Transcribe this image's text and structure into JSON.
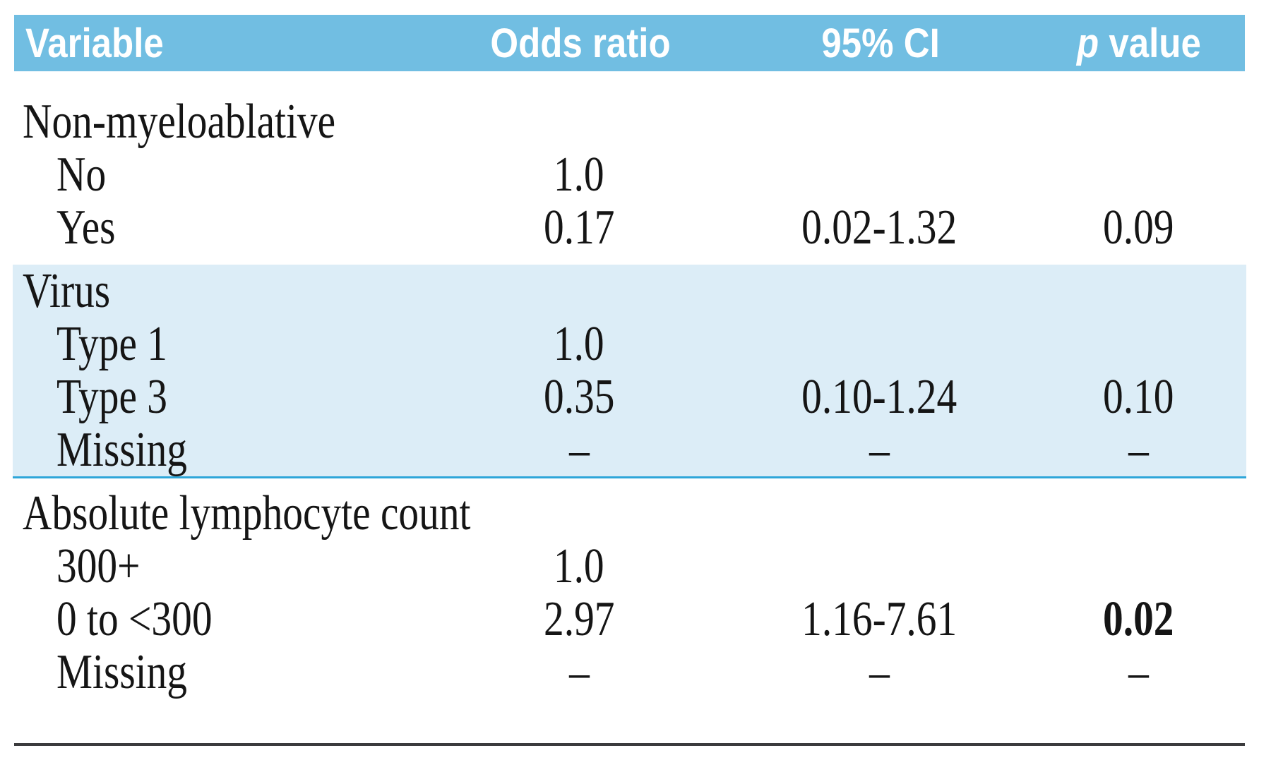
{
  "colors": {
    "header_bg": "#71BEE2",
    "header_text": "#FFFFFF",
    "shaded_row_bg": "#DCEDF7",
    "shaded_divider": "#2EA6D9",
    "bottom_rule": "#3B3B3D",
    "body_text": "#151515"
  },
  "header": {
    "variable": "Variable",
    "odds_ratio": "Odds ratio",
    "ci": "95% CI",
    "p_italic": "p",
    "p_rest": " value"
  },
  "chart_data": {
    "type": "table",
    "columns": [
      "Variable",
      "Odds ratio",
      "95% CI",
      "p value"
    ],
    "rows": [
      [
        "Non-myeloablative",
        "",
        "",
        ""
      ],
      [
        "No",
        "1.0",
        "",
        ""
      ],
      [
        "Yes",
        "0.17",
        "0.02-1.32",
        "0.09"
      ],
      [
        "Virus",
        "",
        "",
        ""
      ],
      [
        "Type 1",
        "1.0",
        "",
        ""
      ],
      [
        "Type 3",
        "0.35",
        "0.10-1.24",
        "0.10"
      ],
      [
        "Missing",
        "–",
        "–",
        "–"
      ],
      [
        "Absolute lymphocyte count",
        "",
        "",
        ""
      ],
      [
        "300+",
        "1.0",
        "",
        ""
      ],
      [
        "0 to <300",
        "2.97",
        "1.16-7.61",
        "0.02"
      ],
      [
        "Missing",
        "–",
        "–",
        "–"
      ]
    ]
  },
  "sections": [
    {
      "group_label": "Non-myeloablative",
      "rows": [
        {
          "label": "No",
          "odds_ratio": "1.0",
          "ci": "",
          "p": ""
        },
        {
          "label": "Yes",
          "odds_ratio": "0.17",
          "ci": "0.02-1.32",
          "p": "0.09"
        }
      ]
    },
    {
      "group_label": "Virus",
      "rows": [
        {
          "label": "Type 1",
          "odds_ratio": "1.0",
          "ci": "",
          "p": ""
        },
        {
          "label": "Type 3",
          "odds_ratio": "0.35",
          "ci": "0.10-1.24",
          "p": "0.10"
        },
        {
          "label": "Missing",
          "odds_ratio": "–",
          "ci": "–",
          "p": "–"
        }
      ]
    },
    {
      "group_label": "Absolute lymphocyte count",
      "rows": [
        {
          "label": "300+",
          "odds_ratio": "1.0",
          "ci": "",
          "p": ""
        },
        {
          "label": "0 to <300",
          "odds_ratio": "2.97",
          "ci": "1.16-7.61",
          "p": "0.02"
        },
        {
          "label": "Missing",
          "odds_ratio": "–",
          "ci": "–",
          "p": "–"
        }
      ]
    }
  ]
}
